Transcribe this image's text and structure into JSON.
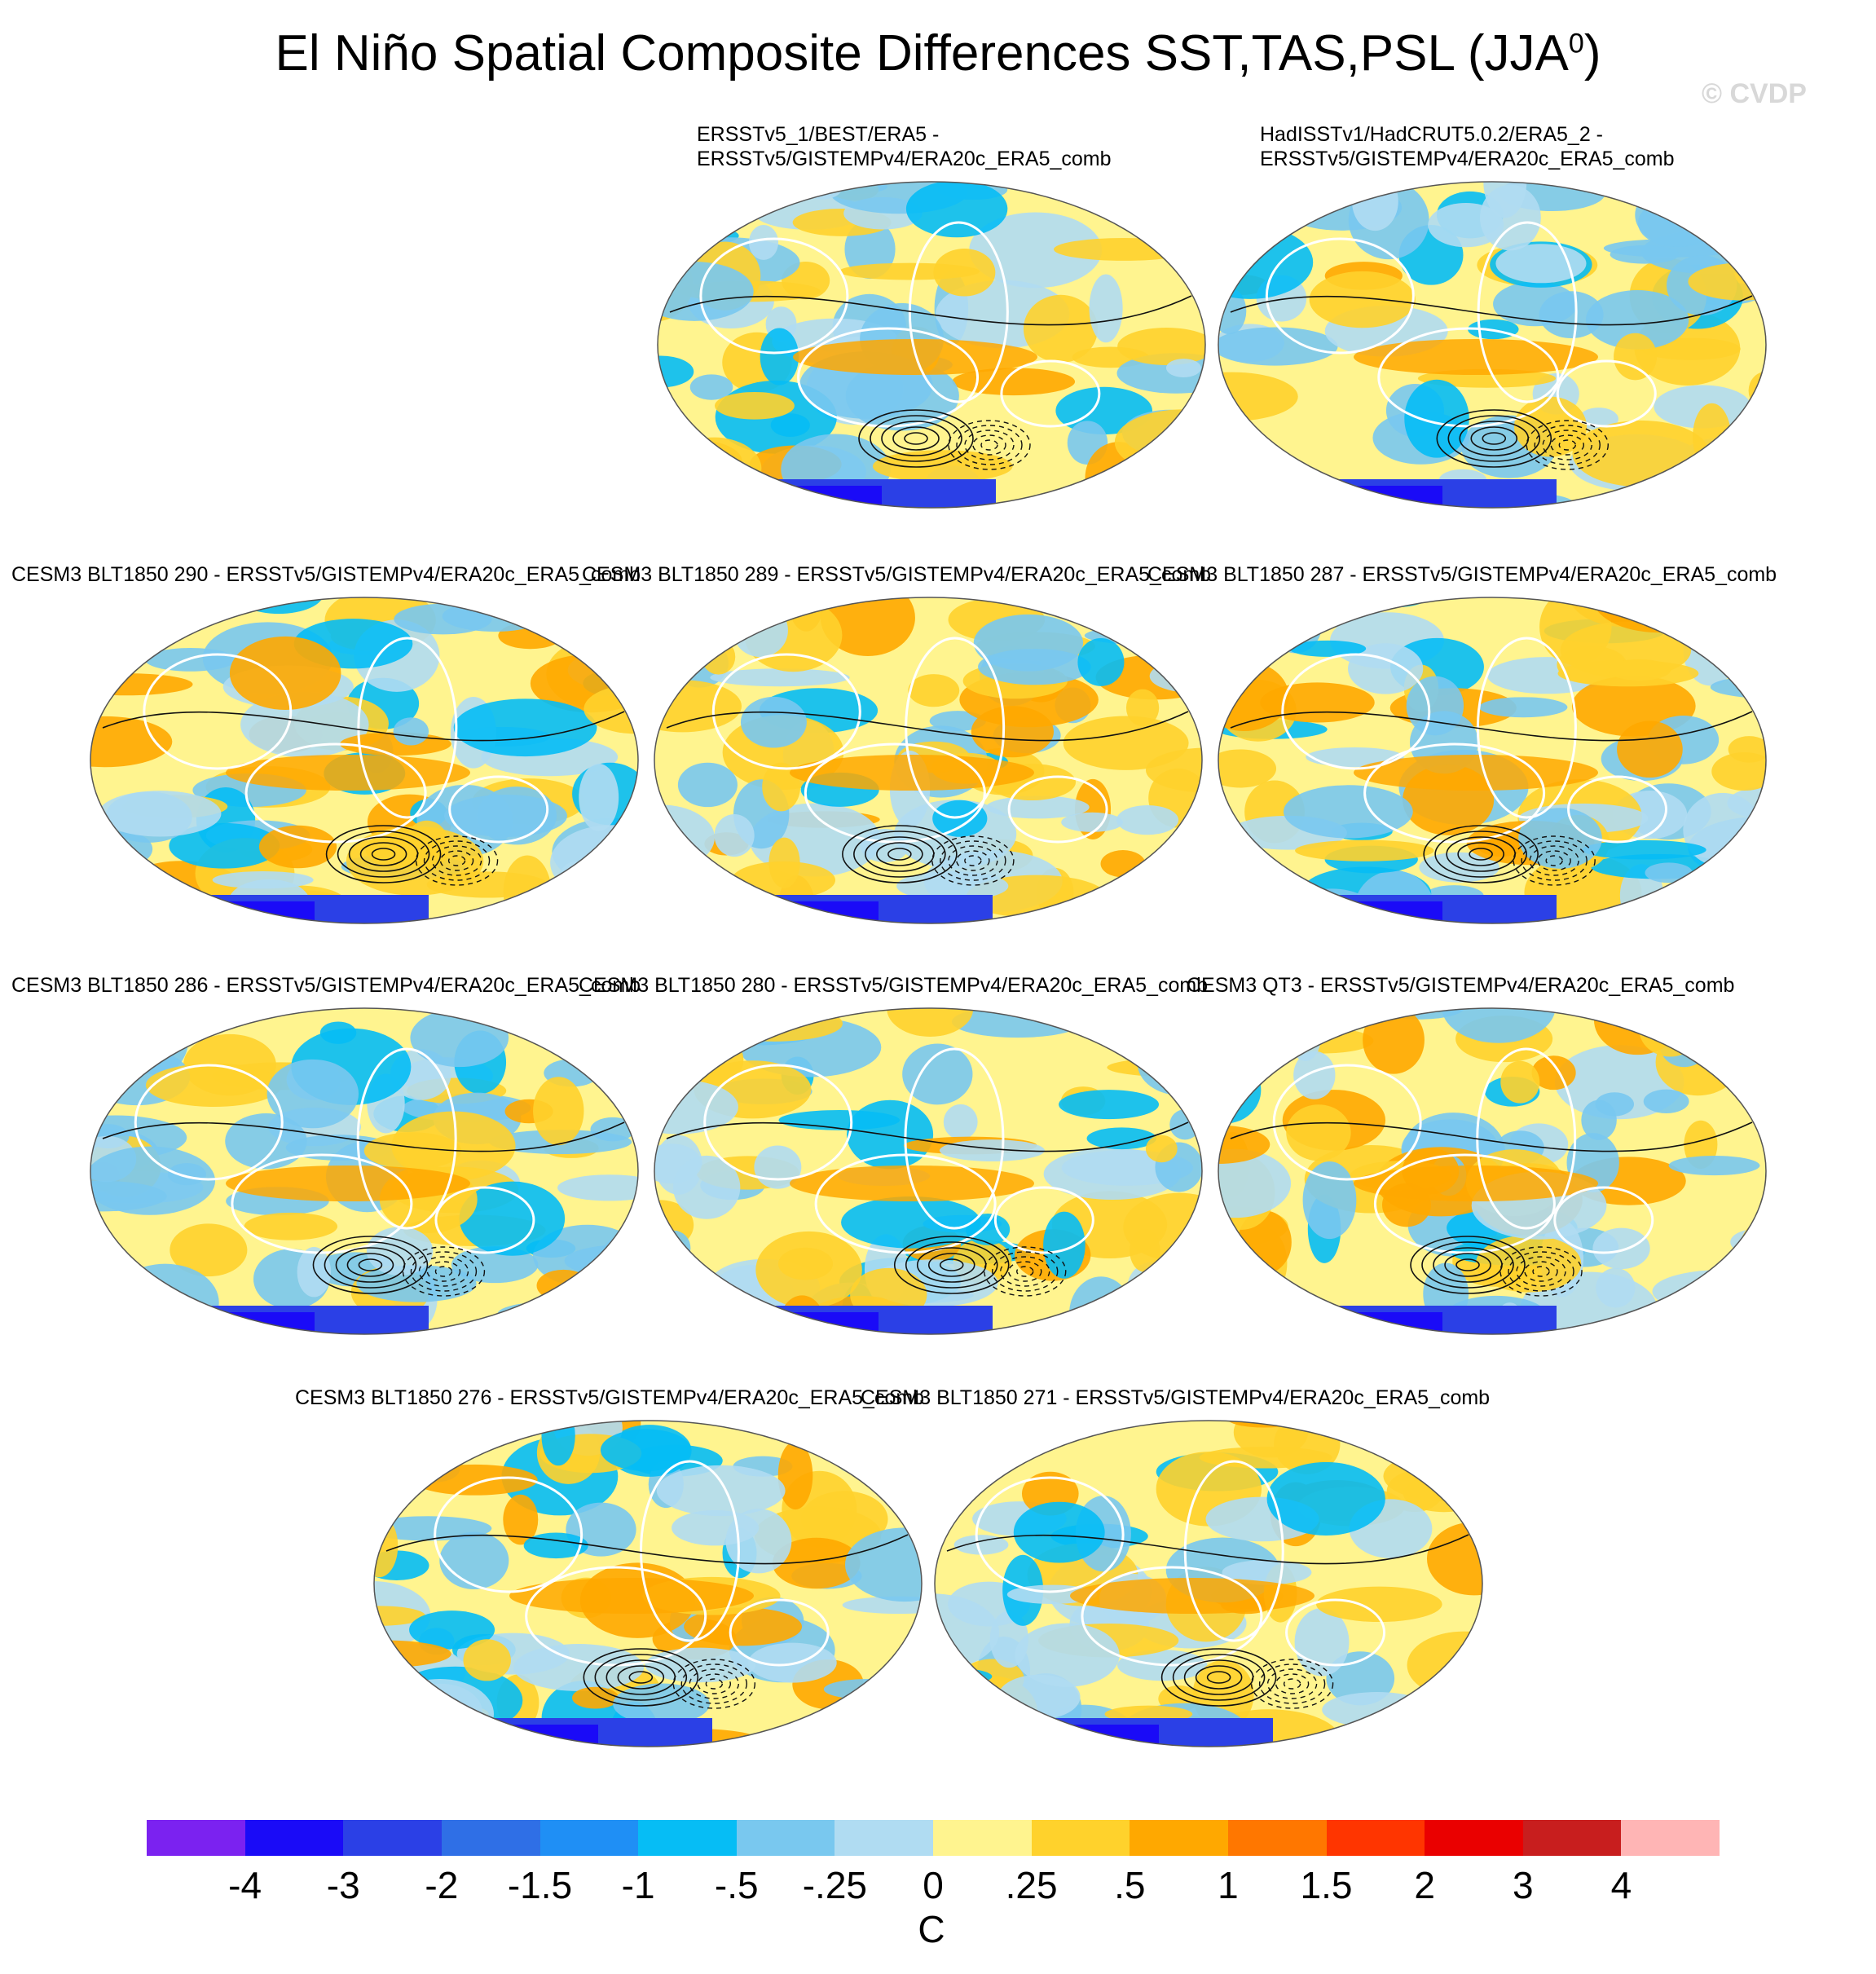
{
  "title_main": "El Niño Spatial Composite Differences SST,TAS,PSL (JJA",
  "title_sup": "0",
  "title_close": ")",
  "watermark": "© CVDP",
  "panels": [
    {
      "label": "ERSSTv5_1/BEST/ERA5 -\nERSSTv5/GISTEMPv4/ERA20c_ERA5_comb"
    },
    {
      "label": "HadISSTv1/HadCRUT5.0.2/ERA5_2 -\nERSSTv5/GISTEMPv4/ERA20c_ERA5_comb"
    },
    {
      "label": "CESM3 BLT1850 290 - ERSSTv5/GISTEMPv4/ERA20c_ERA5_comb"
    },
    {
      "label": "CESM3 BLT1850 289 - ERSSTv5/GISTEMPv4/ERA20c_ERA5_comb"
    },
    {
      "label": "CESM3 BLT1850 287 - ERSSTv5/GISTEMPv4/ERA20c_ERA5_comb"
    },
    {
      "label": "CESM3 BLT1850 286 - ERSSTv5/GISTEMPv4/ERA20c_ERA5_comb"
    },
    {
      "label": "CESM3 BLT1850 280 - ERSSTv5/GISTEMPv4/ERA20c_ERA5_comb"
    },
    {
      "label": "CESM3 QT3 - ERSSTv5/GISTEMPv4/ERA20c_ERA5_comb"
    },
    {
      "label": "CESM3 BLT1850 276 - ERSSTv5/GISTEMPv4/ERA20c_ERA5_comb"
    },
    {
      "label": "CESM3 BLT1850 271 - ERSSTv5/GISTEMPv4/ERA20c_ERA5_comb"
    }
  ],
  "colorbar": {
    "units": "C",
    "ticks": [
      "-4",
      "-3",
      "-2",
      "-1.5",
      "-1",
      "-.5",
      "-.25",
      "0",
      ".25",
      ".5",
      "1",
      "1.5",
      "2",
      "3",
      "4"
    ],
    "colors": [
      "#7b22f0",
      "#1a0bf7",
      "#2b40e6",
      "#2f6fe6",
      "#1f8ff5",
      "#06bdf5",
      "#79c8ef",
      "#b0dcf2",
      "#fff48f",
      "#ffd22c",
      "#ffa800",
      "#ff7700",
      "#ff3500",
      "#ea0000",
      "#c81e1e",
      "#ffb5b5"
    ]
  }
}
